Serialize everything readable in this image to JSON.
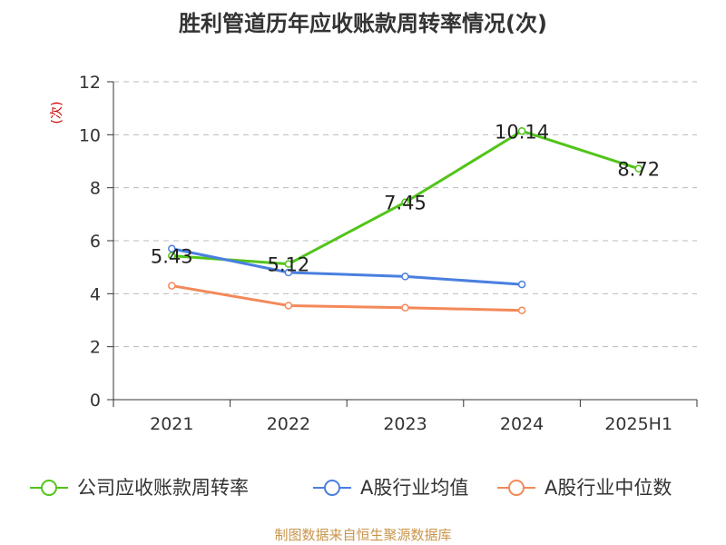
{
  "chart_data": {
    "type": "line",
    "title": "胜利管道历年应收账款周转率情况(次)",
    "ylabel": "(次)",
    "xlabel": "",
    "categories": [
      "2021",
      "2022",
      "2023",
      "2024",
      "2025H1"
    ],
    "ylim": [
      0,
      12
    ],
    "yticks": [
      0,
      2,
      4,
      6,
      8,
      10,
      12
    ],
    "grid": true,
    "legend_position": "bottom",
    "series": [
      {
        "name": "公司应收账款周转率",
        "color": "#52c41a",
        "values": [
          5.43,
          5.12,
          7.45,
          10.14,
          8.72
        ],
        "show_labels": true
      },
      {
        "name": "A股行业均值",
        "color": "#4a7fe0",
        "values": [
          5.7,
          4.8,
          4.65,
          4.35,
          null
        ],
        "show_labels": false
      },
      {
        "name": "A股行业中位数",
        "color": "#f4895a",
        "values": [
          4.3,
          3.55,
          3.47,
          3.37,
          null
        ],
        "show_labels": false
      }
    ]
  },
  "footer": "制图数据来自恒生聚源数据库"
}
